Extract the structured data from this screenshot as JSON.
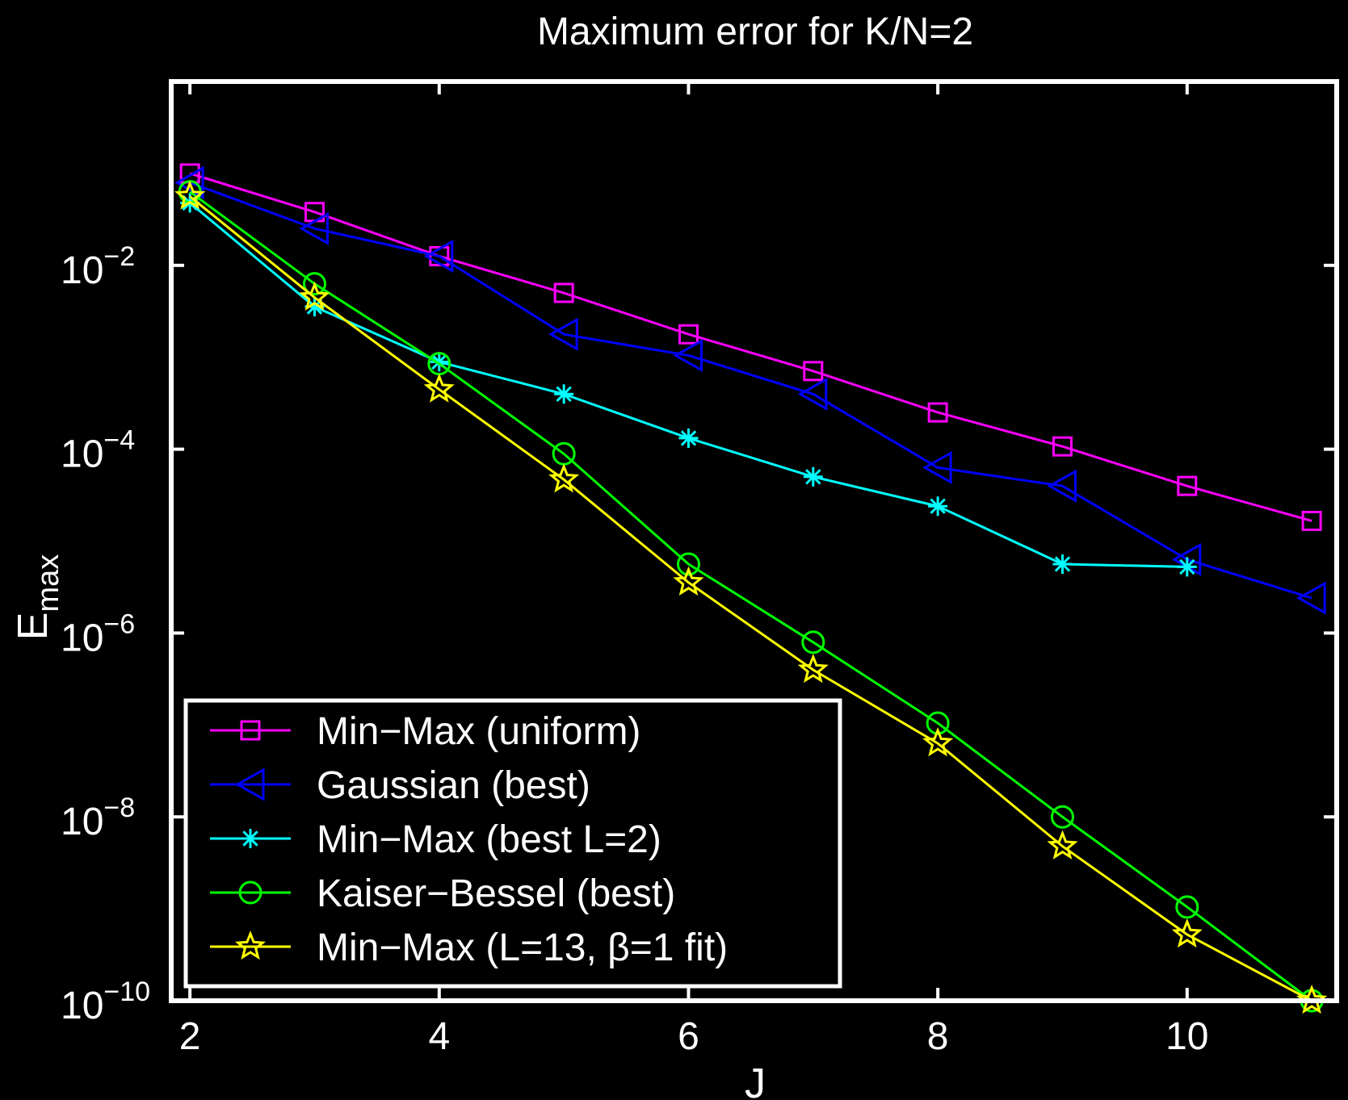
{
  "chart_data": {
    "type": "line",
    "title": "Maximum error for K/N=2",
    "xlabel": "J",
    "ylabel": {
      "base": "E",
      "sub": "max"
    },
    "xlim": [
      1.85,
      11.2
    ],
    "ylim_log10": [
      -10,
      -0.0
    ],
    "yscale": "log",
    "xticks": [
      2,
      4,
      6,
      8,
      10
    ],
    "yticks": [
      {
        "exp": -2,
        "base": "10",
        "sup": "−2"
      },
      {
        "exp": -4,
        "base": "10",
        "sup": "−4"
      },
      {
        "exp": -6,
        "base": "10",
        "sup": "−6"
      },
      {
        "exp": -8,
        "base": "10",
        "sup": "−8"
      },
      {
        "exp": -10,
        "base": "10",
        "sup": "−10"
      }
    ],
    "grid": false,
    "legend_position": "bottom-left",
    "x": [
      2,
      3,
      4,
      5,
      6,
      7,
      8,
      9,
      10,
      11
    ],
    "series": [
      {
        "name": "Min−Max (uniform)",
        "color": "#ff00ff",
        "marker": "square",
        "log10_values": [
          -1.0,
          -1.42,
          -1.9,
          -2.3,
          -2.75,
          -3.15,
          -3.6,
          -3.97,
          -4.4,
          -4.78
        ]
      },
      {
        "name": "Gaussian (best)",
        "color": "#0000ff",
        "marker": "triangle-left",
        "log10_values": [
          -1.1,
          -1.6,
          -1.9,
          -2.75,
          -2.98,
          -3.4,
          -4.2,
          -4.4,
          -5.2,
          -5.62
        ]
      },
      {
        "name": "Min−Max (best L=2)",
        "color": "#00ffff",
        "marker": "asterisk",
        "log10_values": [
          -1.32,
          -2.45,
          -3.05,
          -3.4,
          -3.88,
          -4.3,
          -4.62,
          -5.25,
          -5.28,
          null
        ]
      },
      {
        "name": "Kaiser−Bessel (best)",
        "color": "#00ff00",
        "marker": "circle",
        "log10_values": [
          -1.2,
          -2.2,
          -3.07,
          -4.05,
          -5.25,
          -6.1,
          -6.98,
          -8.0,
          -8.98,
          -10.0
        ]
      },
      {
        "name": "Min−Max (L=13, β=1 fit)",
        "color": "#ffff00",
        "marker": "star",
        "log10_values": [
          -1.25,
          -2.35,
          -3.35,
          -4.33,
          -5.45,
          -6.4,
          -7.2,
          -8.32,
          -9.28,
          -10.0
        ]
      }
    ]
  }
}
